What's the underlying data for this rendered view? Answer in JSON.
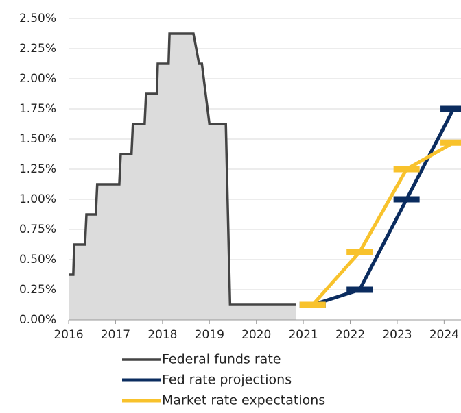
{
  "chart_data": {
    "type": "line",
    "xlim": [
      2016,
      2024.36
    ],
    "xticks": [
      2016,
      2017,
      2018,
      2019,
      2020,
      2021,
      2022,
      2023,
      2024
    ],
    "ylim": [
      0,
      2.5
    ],
    "yticks": [
      {
        "value": 0,
        "label": "0.00%"
      },
      {
        "value": 0.25,
        "label": "0.25%"
      },
      {
        "value": 0.5,
        "label": "0.50%"
      },
      {
        "value": 0.75,
        "label": "0.75%"
      },
      {
        "value": 1,
        "label": "1.00%"
      },
      {
        "value": 1.25,
        "label": "1.25%"
      },
      {
        "value": 1.5,
        "label": "1.50%"
      },
      {
        "value": 1.75,
        "label": "1.75%"
      },
      {
        "value": 2,
        "label": "2.00%"
      },
      {
        "value": 2.25,
        "label": "2.25%"
      },
      {
        "value": 2.5,
        "label": "2.50%"
      }
    ],
    "grid": true,
    "series": [
      {
        "name": "Federal funds rate",
        "color": "#444444",
        "fill": "#dcdcdc",
        "markers": false,
        "x": [
          2016,
          2016.1,
          2016.12,
          2016.35,
          2016.38,
          2016.58,
          2016.61,
          2017.08,
          2017.11,
          2017.34,
          2017.37,
          2017.62,
          2017.65,
          2017.88,
          2017.9,
          2018.13,
          2018.15,
          2018.66,
          2018.78,
          2018.84,
          2019.0,
          2019.35,
          2019.44,
          2020.85
        ],
        "values": [
          0.375,
          0.375,
          0.625,
          0.625,
          0.875,
          0.875,
          1.125,
          1.125,
          1.375,
          1.375,
          1.625,
          1.625,
          1.875,
          1.875,
          2.125,
          2.125,
          2.375,
          2.375,
          2.125,
          2.125,
          1.625,
          1.625,
          0.125,
          0.125
        ]
      },
      {
        "name": "Fed rate projections",
        "color": "#0b2c5f",
        "markers": true,
        "x": [
          2021.2,
          2022.2,
          2023.2,
          2024.2
        ],
        "values": [
          0.125,
          0.25,
          1.0,
          1.75
        ]
      },
      {
        "name": "Market rate expectations",
        "color": "#f8c22c",
        "markers": true,
        "x": [
          2021.2,
          2022.2,
          2023.2,
          2024.2
        ],
        "values": [
          0.125,
          0.5625,
          1.25,
          1.47
        ]
      }
    ]
  }
}
